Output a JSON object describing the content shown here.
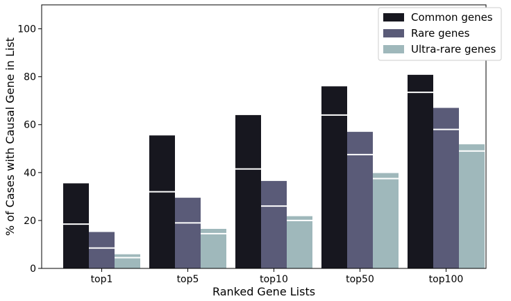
{
  "chart_data": {
    "type": "bar",
    "title": "",
    "xlabel": "Ranked Gene Lists",
    "ylabel": "% of Cases with Causal Gene in List",
    "categories": [
      "top1",
      "top5",
      "top10",
      "top50",
      "top100"
    ],
    "ylim": [
      0,
      110
    ],
    "yticks": [
      0,
      20,
      40,
      60,
      80,
      100
    ],
    "grid": false,
    "legend_position": "top-right",
    "series": [
      {
        "name": "Common genes",
        "color": "#17171f",
        "values": [
          35.5,
          55.5,
          64.0,
          76.0,
          80.8
        ],
        "marker_values": [
          18.5,
          32.0,
          41.5,
          64.0,
          73.5
        ]
      },
      {
        "name": "Rare genes",
        "color": "#5a5b78",
        "values": [
          15.2,
          29.5,
          36.5,
          57.0,
          67.0
        ],
        "marker_values": [
          8.5,
          19.0,
          26.0,
          47.5,
          58.0
        ]
      },
      {
        "name": "Ultra-rare genes",
        "color": "#9fb8bb",
        "values": [
          5.9,
          16.5,
          21.8,
          39.8,
          51.8
        ],
        "marker_values": [
          4.5,
          14.5,
          20.0,
          37.5,
          49.0
        ]
      }
    ]
  }
}
